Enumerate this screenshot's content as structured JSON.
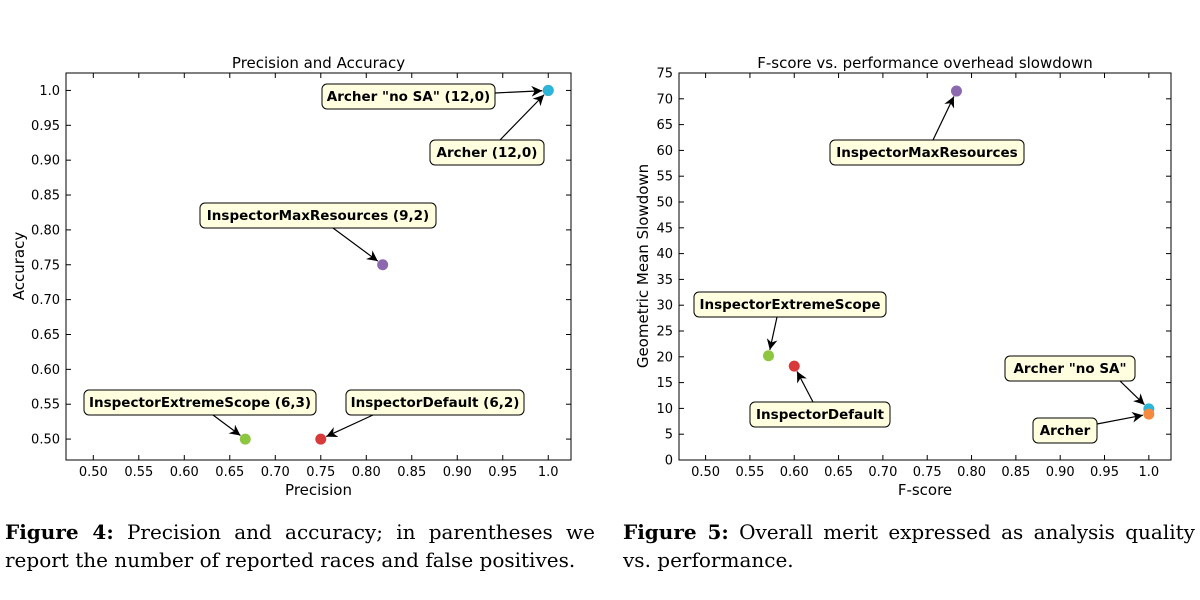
{
  "chart_data": [
    {
      "type": "scatter",
      "title": "Precision and Accuracy",
      "xlabel": "Precision",
      "ylabel": "Accuracy",
      "xlim": [
        0.47,
        1.025
      ],
      "ylim": [
        0.47,
        1.025
      ],
      "xticks": [
        0.5,
        0.55,
        0.6,
        0.65,
        0.7,
        0.75,
        0.8,
        0.85,
        0.9,
        0.95,
        1.0
      ],
      "xtick_labels": [
        "0.50",
        "0.55",
        "0.60",
        "0.65",
        "0.70",
        "0.75",
        "0.80",
        "0.85",
        "0.90",
        "0.95",
        "1.0"
      ],
      "yticks": [
        0.5,
        0.55,
        0.6,
        0.65,
        0.7,
        0.75,
        0.8,
        0.85,
        0.9,
        0.95,
        1.0
      ],
      "ytick_labels": [
        "0.50",
        "0.55",
        "0.60",
        "0.65",
        "0.70",
        "0.75",
        "0.80",
        "0.85",
        "0.90",
        "0.95",
        "1.0"
      ],
      "grid": false,
      "points": [
        {
          "label": "InspectorExtremeScope (6,3)",
          "x": 0.667,
          "y": 0.5,
          "color": "#8dc63f"
        },
        {
          "label": "InspectorDefault (6,2)",
          "x": 0.75,
          "y": 0.5,
          "color": "#d83a3a"
        },
        {
          "label": "InspectorMaxResources (9,2)",
          "x": 0.818,
          "y": 0.75,
          "color": "#8c68ae"
        },
        {
          "label": "Archer (12,0)",
          "x": 1.0,
          "y": 1.0,
          "color": "#f58a3e"
        },
        {
          "label": "Archer \"no SA\" (12,0)",
          "x": 1.0,
          "y": 1.0,
          "color": "#2bb5d8"
        }
      ]
    },
    {
      "type": "scatter",
      "title": "F-score vs. performance overhead slowdown",
      "xlabel": "F-score",
      "ylabel": "Geometric Mean Slowdown",
      "xlim": [
        0.47,
        1.025
      ],
      "ylim": [
        0,
        75
      ],
      "xticks": [
        0.5,
        0.55,
        0.6,
        0.65,
        0.7,
        0.75,
        0.8,
        0.85,
        0.9,
        0.95,
        1.0
      ],
      "xtick_labels": [
        "0.50",
        "0.55",
        "0.60",
        "0.65",
        "0.70",
        "0.75",
        "0.80",
        "0.85",
        "0.90",
        "0.95",
        "1.0"
      ],
      "yticks": [
        0,
        5,
        10,
        15,
        20,
        25,
        30,
        35,
        40,
        45,
        50,
        55,
        60,
        65,
        70,
        75
      ],
      "ytick_labels": [
        "0",
        "5",
        "10",
        "15",
        "20",
        "25",
        "30",
        "35",
        "40",
        "45",
        "50",
        "55",
        "60",
        "65",
        "70",
        "75"
      ],
      "grid": false,
      "points": [
        {
          "label": "InspectorMaxResources",
          "x": 0.783,
          "y": 71.5,
          "color": "#8c68ae"
        },
        {
          "label": "InspectorExtremeScope",
          "x": 0.571,
          "y": 20.2,
          "color": "#8dc63f"
        },
        {
          "label": "InspectorDefault",
          "x": 0.6,
          "y": 18.2,
          "color": "#d83a3a"
        },
        {
          "label": "Archer \"no SA\"",
          "x": 1.0,
          "y": 9.9,
          "color": "#2bb5d8"
        },
        {
          "label": "Archer",
          "x": 1.0,
          "y": 8.9,
          "color": "#f58a3e"
        }
      ]
    }
  ],
  "captions": [
    {
      "label": "Figure 4:",
      "text": "Precision and accuracy; in parentheses we report the number of reported races and false positives."
    },
    {
      "label": "Figure 5:",
      "text": "Overall merit expressed as analysis quality vs. performance."
    }
  ]
}
